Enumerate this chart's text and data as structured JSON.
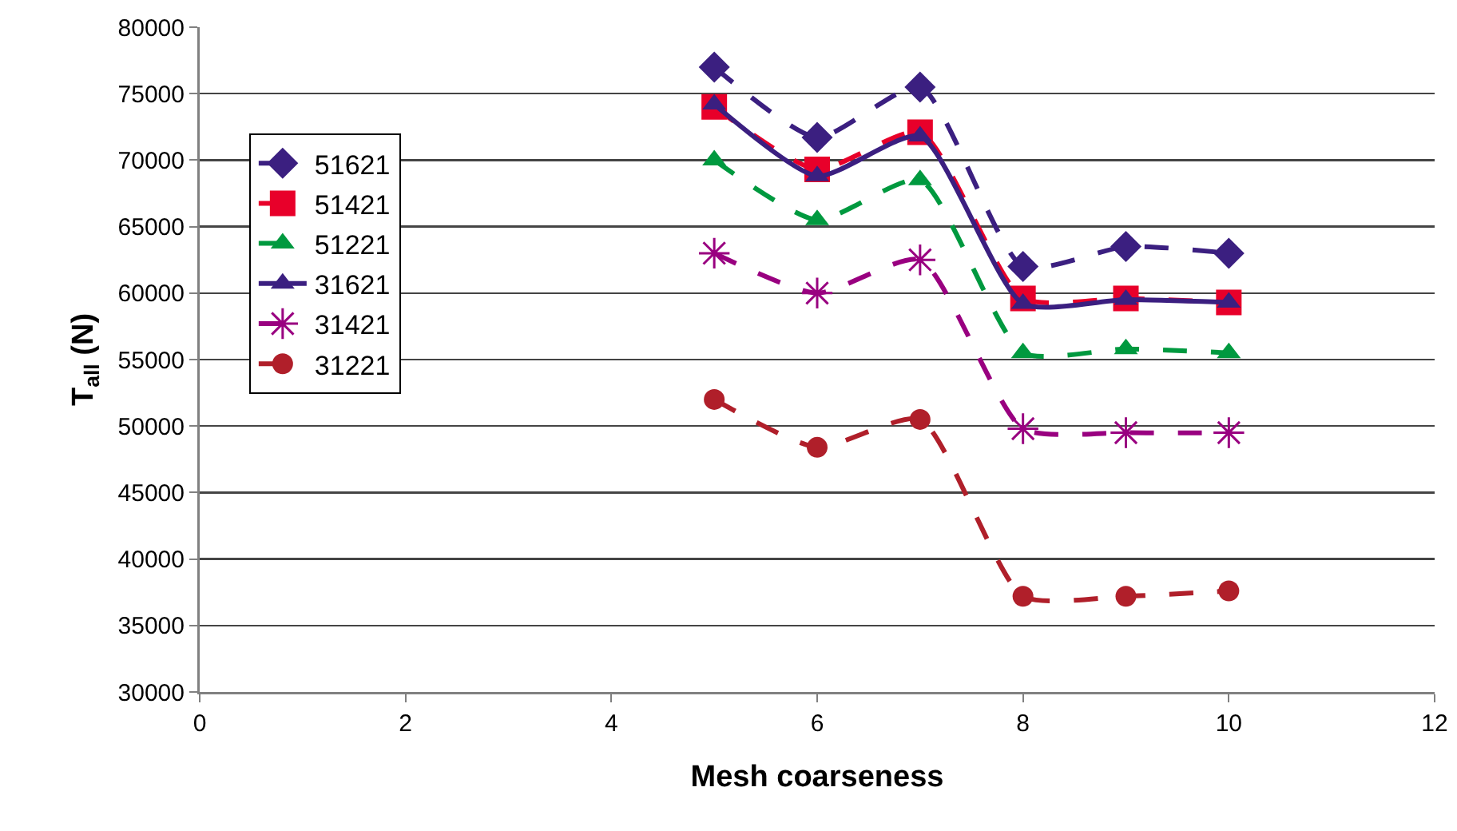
{
  "chart_data": {
    "type": "line",
    "xlabel": "Mesh coarseness",
    "ylabel": "T$_{all}$ (N)",
    "x": [
      5,
      6,
      7,
      8,
      9,
      10
    ],
    "series": [
      {
        "name": "51621",
        "color": "#3b1f80",
        "marker": "diamond",
        "line_style": "dashed",
        "values": [
          77000,
          71700,
          75500,
          62000,
          63500,
          63000
        ]
      },
      {
        "name": "51421",
        "color": "#e8002a",
        "marker": "square",
        "line_style": "dashed",
        "values": [
          74000,
          69300,
          72100,
          59600,
          59600,
          59300
        ]
      },
      {
        "name": "51221",
        "color": "#00993f",
        "marker": "triangle",
        "line_style": "dashed",
        "values": [
          70000,
          65500,
          68500,
          55500,
          55800,
          55500
        ]
      },
      {
        "name": "31621",
        "color": "#3b1f80",
        "marker": "triangle",
        "line_style": "solid",
        "values": [
          74200,
          68800,
          71800,
          59200,
          59500,
          59300
        ]
      },
      {
        "name": "31421",
        "color": "#990080",
        "marker": "cross",
        "line_style": "dashed",
        "values": [
          63000,
          60000,
          62500,
          49800,
          49500,
          49500
        ]
      },
      {
        "name": "31221",
        "color": "#b01f2a",
        "marker": "circle",
        "line_style": "dashed",
        "values": [
          52000,
          48400,
          50500,
          37200,
          37200,
          37600
        ]
      }
    ],
    "xlim": [
      0,
      12
    ],
    "xticks": [
      0,
      2,
      4,
      6,
      8,
      10,
      12
    ],
    "ylim": [
      30000,
      80000
    ],
    "yticks": [
      30000,
      35000,
      40000,
      45000,
      50000,
      55000,
      60000,
      65000,
      70000,
      75000,
      80000
    ],
    "grid": "y",
    "legend": "top left"
  }
}
